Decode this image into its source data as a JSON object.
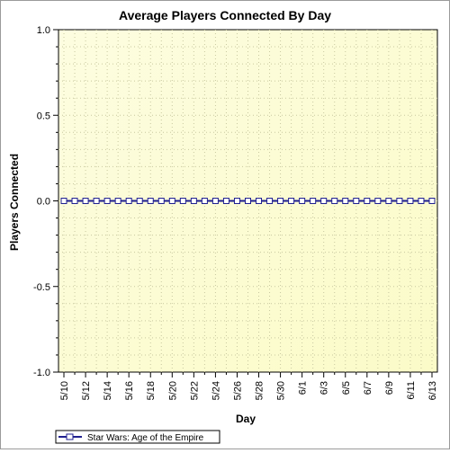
{
  "chart_data": {
    "type": "line",
    "title": "Average Players Connected By Day",
    "xlabel": "Day",
    "ylabel": "Players Connected",
    "x": [
      "5/10",
      "5/11",
      "5/12",
      "5/13",
      "5/14",
      "5/15",
      "5/16",
      "5/17",
      "5/18",
      "5/19",
      "5/20",
      "5/21",
      "5/22",
      "5/23",
      "5/24",
      "5/25",
      "5/26",
      "5/27",
      "5/28",
      "5/29",
      "5/30",
      "5/31",
      "6/1",
      "6/2",
      "6/3",
      "6/4",
      "6/5",
      "6/6",
      "6/7",
      "6/8",
      "6/9",
      "6/10",
      "6/11",
      "6/12",
      "6/13"
    ],
    "x_tick_labels": [
      "5/10",
      "5/12",
      "5/14",
      "5/16",
      "5/18",
      "5/20",
      "5/22",
      "5/24",
      "5/26",
      "5/28",
      "5/30",
      "6/1",
      "6/3",
      "6/5",
      "6/7",
      "6/9",
      "6/11",
      "6/13"
    ],
    "y_tick_labels": [
      "1.0",
      "0.5",
      "0.0",
      "-0.5",
      "-1.0"
    ],
    "ylim": [
      -1.0,
      1.0
    ],
    "grid": true,
    "legend_position": "bottom-left",
    "series": [
      {
        "name": "Star Wars: Age of the Empire",
        "values": [
          0,
          0,
          0,
          0,
          0,
          0,
          0,
          0,
          0,
          0,
          0,
          0,
          0,
          0,
          0,
          0,
          0,
          0,
          0,
          0,
          0,
          0,
          0,
          0,
          0,
          0,
          0,
          0,
          0,
          0,
          0,
          0,
          0,
          0,
          0
        ]
      }
    ],
    "colors": {
      "series": "#1f1f8f",
      "background_gradient": [
        "#fdfde0",
        "#fbfbc8"
      ],
      "grid": "#c8c8a0"
    }
  }
}
